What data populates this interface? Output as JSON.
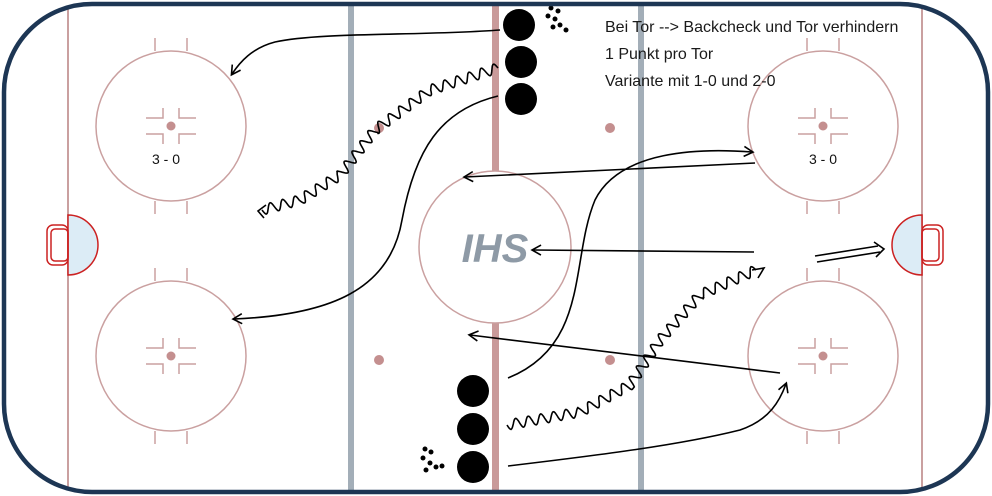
{
  "notes": [
    "Bei Tor --> Backcheck und Tor verhindern",
    "1 Punkt pro Tor",
    "Variante mit 1-0 und 2-0"
  ],
  "circle_labels": {
    "left_top": "3 - 0",
    "right_top": "3 - 0"
  },
  "logo_text": "IHS",
  "colors": {
    "boards": "#1d3654",
    "red_line": "#c99a9a",
    "blue_line": "#a3aeb8",
    "markings": "#caa0a0",
    "crease": "#dcecf6",
    "goal": "#cc2222",
    "player": "#000000"
  },
  "players": {
    "top_group_count": 3,
    "bottom_group_count": 3
  }
}
